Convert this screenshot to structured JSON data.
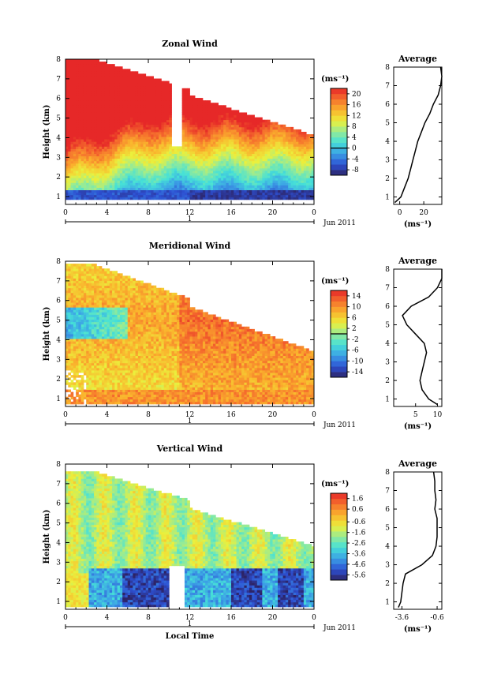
{
  "chart_data": [
    {
      "type": "heatmap",
      "title": "Zonal Wind",
      "ylabel": "Height (km)",
      "xlabel": "",
      "x_ticks": [
        "0",
        "4",
        "8",
        "12",
        "16",
        "20",
        "0"
      ],
      "y_ticks": [
        "1",
        "2",
        "3",
        "4",
        "5",
        "6",
        "7",
        "8"
      ],
      "xlim": [
        0,
        24
      ],
      "ylim": [
        0.6,
        8
      ],
      "day_label": "1",
      "month_label": "Jun 2011",
      "colorbar": {
        "unit": "(ms⁻¹)",
        "ticks": [
          "-8",
          "-4",
          "0",
          "4",
          "8",
          "12",
          "16",
          "20"
        ],
        "range": [
          -10,
          22
        ],
        "contour_value": 0
      },
      "average_profile": {
        "title": "Average",
        "xlabel": "(ms⁻¹)",
        "x_ticks": [
          "0",
          "20"
        ],
        "xlim": [
          -5,
          35
        ],
        "heights": [
          0.7,
          1.0,
          1.5,
          2.0,
          2.5,
          3.0,
          3.5,
          4.0,
          4.5,
          5.0,
          5.5,
          6.0,
          6.5,
          7.0,
          7.5,
          8.0
        ],
        "values": [
          -4,
          1,
          4,
          7,
          9,
          11,
          13,
          15,
          18,
          21,
          25,
          28,
          32,
          34,
          35,
          34
        ]
      }
    },
    {
      "type": "heatmap",
      "title": "Meridional Wind",
      "ylabel": "Height (km)",
      "xlabel": "",
      "x_ticks": [
        "0",
        "4",
        "8",
        "12",
        "16",
        "20",
        "0"
      ],
      "y_ticks": [
        "1",
        "2",
        "3",
        "4",
        "5",
        "6",
        "7",
        "8"
      ],
      "xlim": [
        0,
        24
      ],
      "ylim": [
        0.6,
        8
      ],
      "day_label": "1",
      "month_label": "Jun 2011",
      "colorbar": {
        "unit": "(ms⁻¹)",
        "ticks": [
          "-14",
          "-10",
          "-6",
          "-2",
          "2",
          "6",
          "10",
          "14"
        ],
        "range": [
          -16,
          16
        ],
        "contour_value": 0
      },
      "average_profile": {
        "title": "Average",
        "xlabel": "(ms⁻¹)",
        "x_ticks": [
          "5",
          "10"
        ],
        "xlim": [
          0,
          11
        ],
        "heights": [
          0.7,
          1.0,
          1.5,
          2.0,
          2.5,
          3.0,
          3.5,
          4.0,
          4.5,
          5.0,
          5.5,
          6.0,
          6.5,
          7.0,
          7.5,
          8.0
        ],
        "values": [
          10,
          8,
          6.5,
          6,
          6.5,
          7,
          7.5,
          7,
          5,
          3,
          2,
          4,
          8,
          10,
          11,
          11
        ]
      }
    },
    {
      "type": "heatmap",
      "title": "Vertical Wind",
      "ylabel": "Height (km)",
      "xlabel": "Local Time",
      "x_ticks": [
        "0",
        "4",
        "8",
        "12",
        "16",
        "20",
        "0"
      ],
      "y_ticks": [
        "1",
        "2",
        "3",
        "4",
        "5",
        "6",
        "7",
        "8"
      ],
      "xlim": [
        0,
        24
      ],
      "ylim": [
        0.6,
        8
      ],
      "day_label": "1",
      "month_label": "Jun 2011",
      "colorbar": {
        "unit": "(ms⁻¹)",
        "ticks": [
          "-5.6",
          "-4.6",
          "-3.6",
          "-2.6",
          "-1.6",
          "-0.6",
          "0.6",
          "1.6"
        ],
        "range": [
          -6.1,
          2.1
        ]
      },
      "average_profile": {
        "title": "Average",
        "xlabel": "(ms⁻¹)",
        "x_ticks": [
          "-3.6",
          "-0.6"
        ],
        "xlim": [
          -4.3,
          -0.2
        ],
        "heights": [
          0.7,
          1.0,
          1.5,
          2.0,
          2.5,
          3.0,
          3.5,
          4.0,
          4.5,
          5.0,
          5.5,
          6.0,
          6.5,
          7.0,
          7.5,
          8.0
        ],
        "values": [
          -3.9,
          -3.7,
          -3.6,
          -3.5,
          -3.3,
          -1.9,
          -1.0,
          -0.7,
          -0.6,
          -0.6,
          -0.6,
          -0.8,
          -0.7,
          -0.8,
          -0.8,
          -0.9
        ]
      }
    }
  ]
}
